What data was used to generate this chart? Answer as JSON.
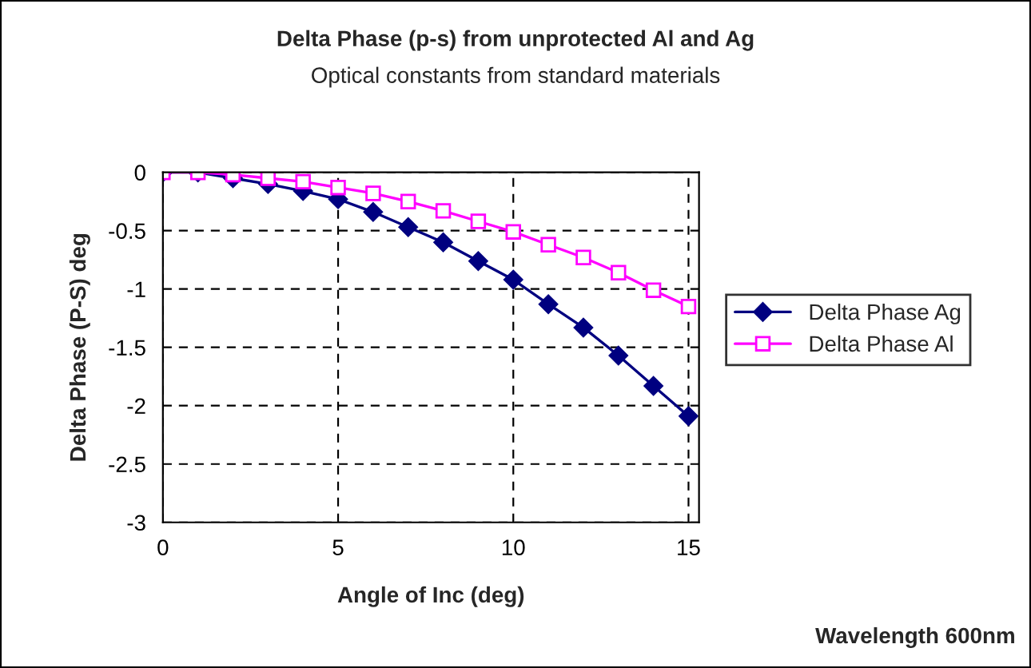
{
  "chart_data": {
    "type": "line",
    "title": "Delta Phase (p-s) from unprotected Al and Ag",
    "subtitle": "Optical constants from standard materials",
    "xlabel": "Angle of Inc (deg)",
    "ylabel": "Delta Phase (P-S) deg",
    "x": [
      0,
      1,
      2,
      3,
      4,
      5,
      6,
      7,
      8,
      9,
      10,
      11,
      12,
      13,
      14,
      15
    ],
    "series": [
      {
        "name": "Delta Phase Ag",
        "color": "#000080",
        "marker": "diamond",
        "values": [
          0,
          0,
          -0.05,
          -0.1,
          -0.16,
          -0.23,
          -0.34,
          -0.47,
          -0.6,
          -0.76,
          -0.92,
          -1.13,
          -1.33,
          -1.57,
          -1.83,
          -2.09
        ]
      },
      {
        "name": "Delta Phase Al",
        "color": "#ff00ff",
        "marker": "square",
        "values": [
          0,
          0,
          -0.02,
          -0.05,
          -0.08,
          -0.13,
          -0.18,
          -0.25,
          -0.33,
          -0.42,
          -0.51,
          -0.62,
          -0.73,
          -0.86,
          -1.01,
          -1.15
        ]
      }
    ],
    "xlim": [
      0,
      15.3
    ],
    "xticks": [
      0,
      5,
      10,
      15
    ],
    "ylim": [
      -3,
      0
    ],
    "yticks": [
      -3,
      -2.5,
      -2,
      -1.5,
      -1,
      -0.5,
      0
    ],
    "grid": true,
    "legend": "right",
    "line_style": "solid",
    "annotations": [
      "Wavelength 600nm"
    ]
  }
}
